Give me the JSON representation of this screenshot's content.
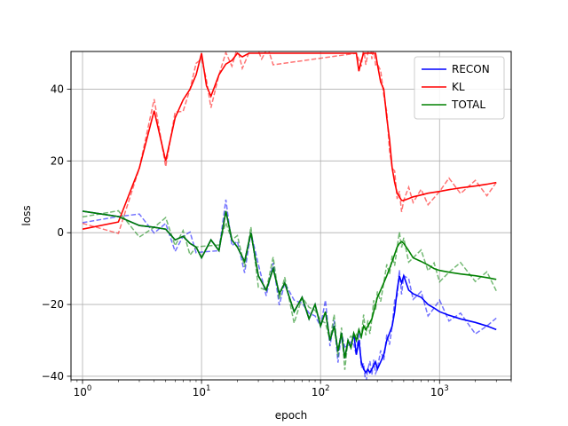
{
  "chart_data": {
    "type": "line",
    "title": "",
    "xlabel": "epoch",
    "ylabel": "loss",
    "xscale": "log",
    "xlim": [
      0.8,
      4000
    ],
    "ylim": [
      -41,
      50.5
    ],
    "xticks": [
      {
        "value": 1,
        "base": "10",
        "exp": "0"
      },
      {
        "value": 10,
        "base": "10",
        "exp": "1"
      },
      {
        "value": 100,
        "base": "10",
        "exp": "2"
      },
      {
        "value": 1000,
        "base": "10",
        "exp": "3"
      }
    ],
    "yticks": [
      {
        "value": -40,
        "label": "−40"
      },
      {
        "value": -20,
        "label": "−20"
      },
      {
        "value": 0,
        "label": "0"
      },
      {
        "value": 20,
        "label": "20"
      },
      {
        "value": 40,
        "label": "40"
      }
    ],
    "grid": true,
    "legend_position": "top-right",
    "series": [
      {
        "name": "RECON",
        "color": "#0000ff",
        "x": [
          1,
          2,
          3,
          4,
          5,
          6,
          7,
          8,
          9,
          10,
          12,
          14,
          16,
          18,
          20,
          23,
          26,
          30,
          35,
          40,
          45,
          50,
          60,
          70,
          80,
          90,
          100,
          110,
          120,
          130,
          140,
          150,
          160,
          170,
          180,
          190,
          200,
          210,
          220,
          230,
          240,
          250,
          260,
          270,
          280,
          290,
          300,
          320,
          340,
          360,
          380,
          400,
          420,
          440,
          460,
          480,
          500,
          550,
          600,
          700,
          800,
          900,
          1000,
          1200,
          1500,
          2000,
          2500,
          3000
        ],
        "y": [
          6,
          4.5,
          2,
          1.5,
          1,
          -2,
          -1,
          -3,
          -4,
          -7,
          -2,
          -5,
          6,
          -2,
          -4,
          -8,
          0,
          -12,
          -16,
          -10,
          -17,
          -14,
          -22,
          -18,
          -24,
          -20,
          -26,
          -22,
          -30,
          -26,
          -33,
          -28,
          -35,
          -30,
          -32,
          -28,
          -34,
          -30,
          -36,
          -38,
          -39,
          -38,
          -39,
          -38,
          -37,
          -36,
          -38,
          -36,
          -34,
          -30,
          -28,
          -26,
          -22,
          -16,
          -12,
          -14,
          -12,
          -16,
          -17,
          -18,
          -20,
          -21,
          -22,
          -23,
          -24,
          -25,
          -26,
          -27
        ]
      },
      {
        "name": "KL",
        "color": "#ff0000",
        "x": [
          1,
          2,
          3,
          4,
          5,
          6,
          7,
          8,
          9,
          10,
          11,
          12,
          14,
          16,
          18,
          20,
          22,
          25,
          28,
          32,
          36,
          40,
          200,
          210,
          220,
          230,
          240,
          250,
          260,
          270,
          280,
          290,
          300,
          320,
          340,
          360,
          380,
          400,
          420,
          440,
          460,
          480,
          500,
          550,
          600,
          700,
          800,
          1000,
          1200,
          1500,
          2000,
          2500,
          3000
        ],
        "y": [
          1,
          3,
          18,
          34,
          20,
          32,
          37,
          40,
          44,
          50,
          41,
          38,
          44,
          47,
          48,
          50,
          49,
          50,
          50,
          50,
          50,
          50,
          50,
          45,
          48,
          50,
          50,
          50,
          50,
          50,
          50,
          50,
          47,
          42,
          40,
          32,
          26,
          18,
          14,
          11,
          10,
          9,
          9,
          9.5,
          10,
          10.5,
          11,
          11.5,
          12,
          12.5,
          13,
          13.5,
          14
        ]
      },
      {
        "name": "TOTAL",
        "color": "#008000",
        "x": [
          1,
          2,
          3,
          4,
          5,
          6,
          7,
          8,
          9,
          10,
          12,
          14,
          16,
          18,
          20,
          23,
          26,
          30,
          35,
          40,
          45,
          50,
          60,
          70,
          80,
          90,
          100,
          110,
          120,
          130,
          140,
          150,
          160,
          170,
          180,
          190,
          200,
          210,
          220,
          230,
          240,
          250,
          260,
          270,
          280,
          290,
          300,
          320,
          340,
          360,
          380,
          400,
          420,
          440,
          460,
          480,
          500,
          550,
          600,
          700,
          800,
          900,
          1000,
          1200,
          1500,
          2000,
          2500,
          3000
        ],
        "y": [
          6,
          4.5,
          2,
          1.5,
          1,
          -2,
          -1,
          -3,
          -4,
          -7,
          -2,
          -5,
          6,
          -2,
          -4,
          -8,
          0,
          -12,
          -16,
          -10,
          -17,
          -14,
          -22,
          -18,
          -24,
          -20,
          -26,
          -22,
          -30,
          -26,
          -33,
          -28,
          -35,
          -30,
          -32,
          -28,
          -30,
          -27,
          -29,
          -26,
          -27,
          -26,
          -25,
          -24,
          -22,
          -20,
          -18,
          -16,
          -14,
          -12,
          -10,
          -8,
          -6,
          -4,
          -3,
          -2.5,
          -3,
          -5,
          -7,
          -8,
          -9,
          -10,
          -10.5,
          -11,
          -11.5,
          -12,
          -12.5,
          -13
        ]
      }
    ]
  }
}
